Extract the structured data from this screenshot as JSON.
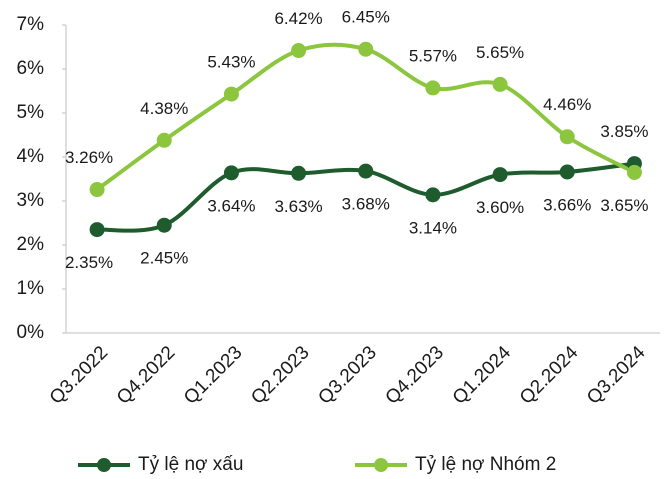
{
  "chart_data": {
    "type": "line",
    "categories": [
      "Q3.2022",
      "Q4.2022",
      "Q1.2023",
      "Q2.2023",
      "Q3.2023",
      "Q4.2023",
      "Q1.2024",
      "Q2.2024",
      "Q3.2024"
    ],
    "series": [
      {
        "name": "Tỷ lệ nợ xấu",
        "color": "#1e5c2e",
        "values": [
          2.35,
          2.45,
          3.64,
          3.63,
          3.68,
          3.14,
          3.6,
          3.66,
          3.85
        ],
        "value_labels": [
          "2.35%",
          "2.45%",
          "3.64%",
          "3.63%",
          "3.68%",
          "3.14%",
          "3.60%",
          "3.66%",
          "3.85%"
        ]
      },
      {
        "name": "Tỷ lệ nợ Nhóm 2",
        "color": "#8cc63f",
        "values": [
          3.26,
          4.38,
          5.43,
          6.42,
          6.45,
          5.57,
          5.65,
          4.46,
          3.65
        ],
        "value_labels": [
          "3.26%",
          "4.38%",
          "5.43%",
          "6.42%",
          "6.45%",
          "5.57%",
          "5.65%",
          "4.46%",
          "3.65%"
        ]
      }
    ],
    "ylim": [
      0,
      7
    ],
    "yticks": [
      {
        "value": 0,
        "label": "0%"
      },
      {
        "value": 1,
        "label": "1%"
      },
      {
        "value": 2,
        "label": "2%"
      },
      {
        "value": 3,
        "label": "3%"
      },
      {
        "value": 4,
        "label": "4%"
      },
      {
        "value": 5,
        "label": "5%"
      },
      {
        "value": 6,
        "label": "6%"
      },
      {
        "value": 7,
        "label": "7%"
      }
    ],
    "grid": false,
    "legend": "bottom"
  }
}
